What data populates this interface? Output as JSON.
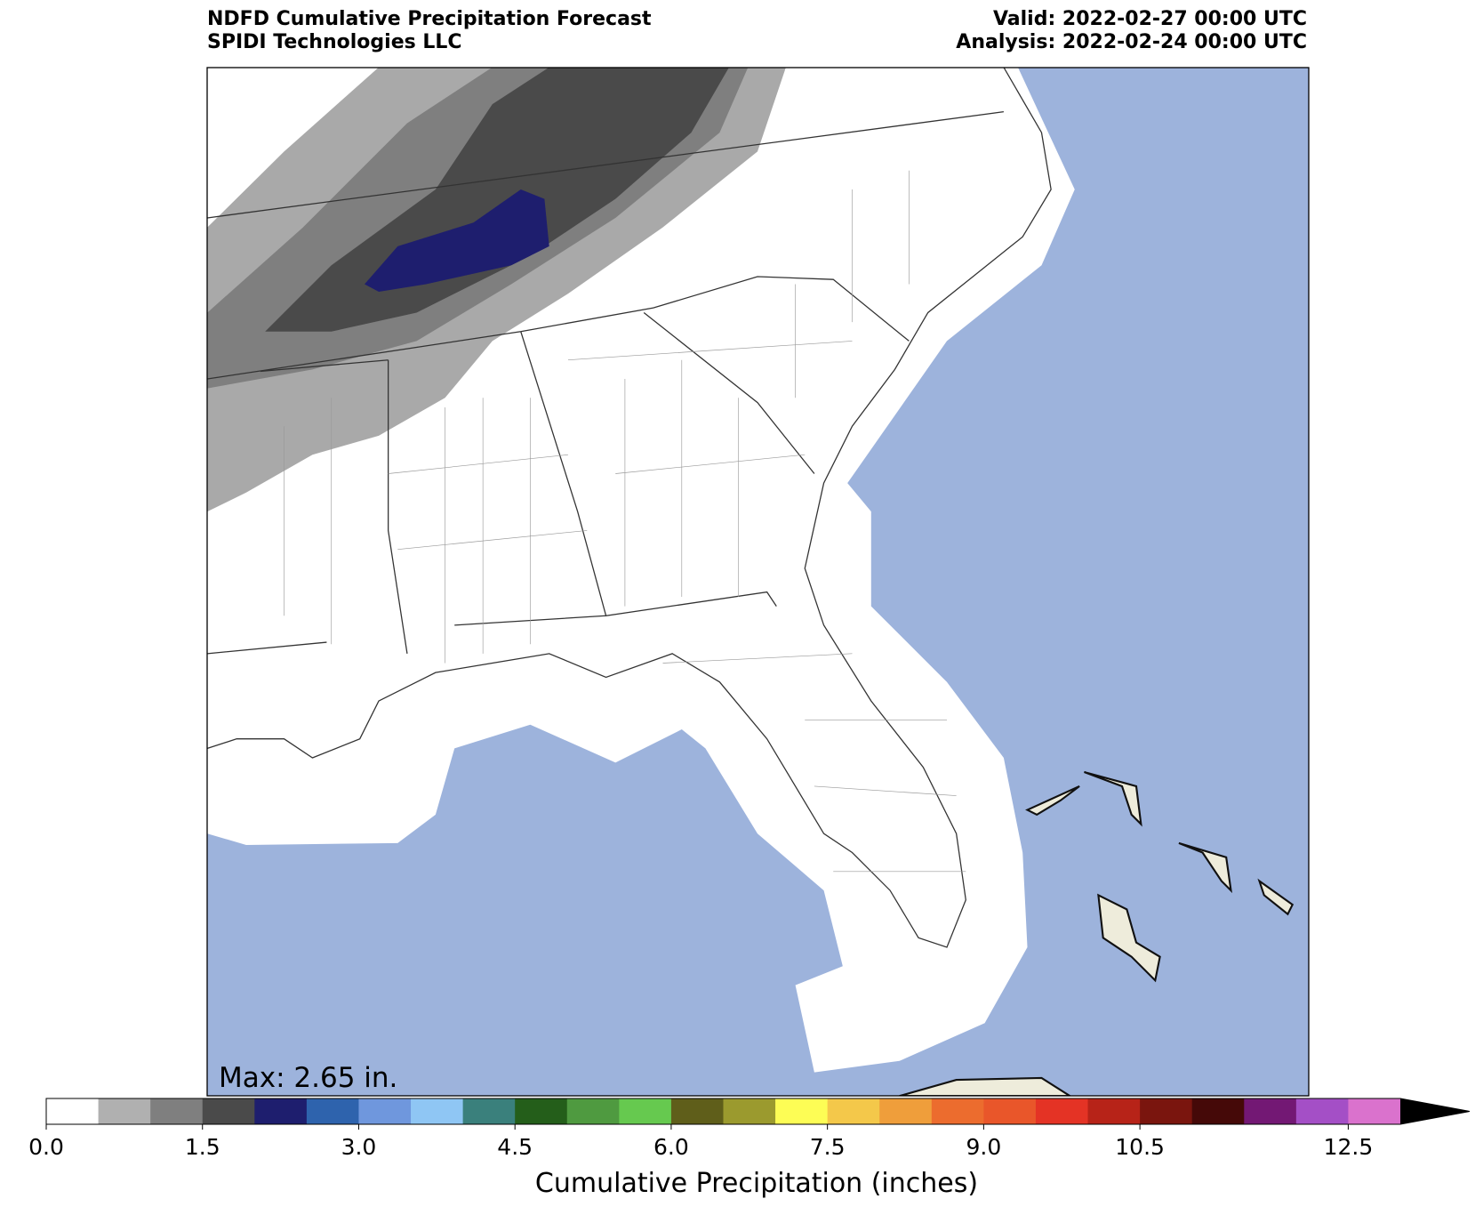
{
  "header": {
    "title": "NDFD Cumulative Precipitation Forecast",
    "source": "SPIDI Technologies LLC",
    "valid": "Valid: 2022-02-27 00:00 UTC",
    "analysis": "Analysis: 2022-02-24 00:00 UTC"
  },
  "map": {
    "max_label": "Max: 2.65 in."
  },
  "colorbar": {
    "label": "Cumulative Precipitation (inches)",
    "lim": [
      0,
      13
    ],
    "colors": [
      "#ffffff",
      "#b0b0b0",
      "#7f7f7f",
      "#4a4a4a",
      "#1e1e6e",
      "#2e63ad",
      "#6f97dd",
      "#8fc6f4",
      "#3a807c",
      "#245e1a",
      "#4f9a40",
      "#66c94f",
      "#5f5e1a",
      "#9b9a2e",
      "#fdfd55",
      "#f4c84a",
      "#ef9e3b",
      "#ec6c2e",
      "#e9562a",
      "#e43325",
      "#b72318",
      "#7a150e",
      "#450908",
      "#731874",
      "#a44fc6",
      "#da72cd"
    ],
    "extend_color": "#000000",
    "ticks": [
      {
        "value": 0,
        "label": "0.0"
      },
      1.5,
      {
        "value": 3,
        "label": "3.0"
      },
      4.5,
      {
        "value": 6,
        "label": "6.0"
      },
      7.5,
      {
        "value": 9,
        "label": "9.0"
      },
      10.5,
      12.5
    ]
  }
}
